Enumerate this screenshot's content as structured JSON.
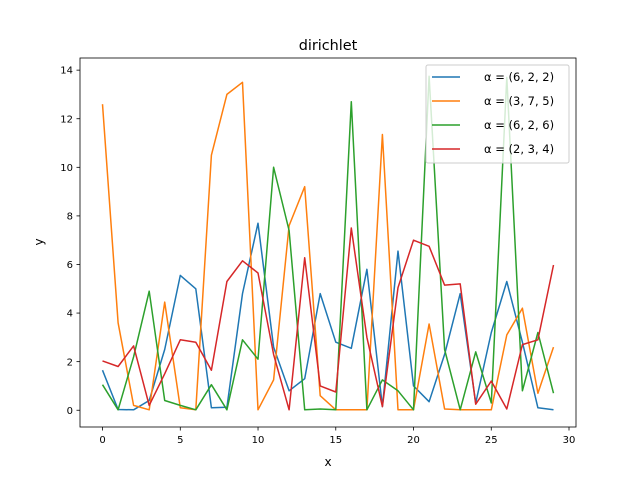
{
  "figure": {
    "title": "dirichlet",
    "xlabel": "x",
    "ylabel": "y"
  },
  "axes": {
    "xticks": [
      0,
      5,
      10,
      15,
      20,
      25,
      30
    ],
    "yticks": [
      0,
      2,
      4,
      6,
      8,
      10,
      12,
      14
    ],
    "xlim": [
      -1.45,
      30.45
    ],
    "ylim": [
      -0.69,
      14.5
    ]
  },
  "legend": {
    "position": "upper right",
    "entries": [
      {
        "label": "α = (6, 2, 2)",
        "color": "#1f77b4"
      },
      {
        "label": "α = (3, 7, 5)",
        "color": "#ff7f0e"
      },
      {
        "label": "α = (6, 2, 6)",
        "color": "#2ca02c"
      },
      {
        "label": "α = (2, 3, 4)",
        "color": "#d62728"
      }
    ]
  },
  "chart_data": {
    "type": "line",
    "title": "dirichlet",
    "xlabel": "x",
    "ylabel": "y",
    "xlim": [
      -1.45,
      30.45
    ],
    "ylim": [
      -0.69,
      14.5
    ],
    "grid": false,
    "legend_position": "upper right",
    "x": [
      0,
      1,
      2,
      3,
      4,
      5,
      6,
      7,
      8,
      9,
      10,
      11,
      12,
      13,
      14,
      15,
      16,
      17,
      18,
      19,
      20,
      21,
      22,
      23,
      24,
      25,
      26,
      27,
      28,
      29
    ],
    "series": [
      {
        "name": "α = (6, 2, 2)",
        "color": "#1f77b4",
        "values": [
          1.65,
          0.03,
          0.02,
          0.4,
          2.5,
          5.55,
          5.0,
          0.1,
          0.12,
          4.8,
          7.7,
          2.6,
          0.8,
          1.3,
          4.8,
          2.8,
          2.55,
          5.8,
          0.15,
          6.55,
          1.0,
          0.35,
          2.3,
          4.8,
          0.3,
          3.2,
          5.3,
          2.8,
          0.1,
          0.02
        ]
      },
      {
        "name": "α = (3, 7, 5)",
        "color": "#ff7f0e",
        "values": [
          12.6,
          3.6,
          0.2,
          0.02,
          4.45,
          0.1,
          0.02,
          10.5,
          13.0,
          13.5,
          0.02,
          1.25,
          7.6,
          9.2,
          0.6,
          0.02,
          0.02,
          0.02,
          11.35,
          0.02,
          0.02,
          3.55,
          0.05,
          0.02,
          0.02,
          0.02,
          3.1,
          4.2,
          0.7,
          2.6
        ]
      },
      {
        "name": "α = (6, 2, 6)",
        "color": "#2ca02c",
        "values": [
          1.05,
          0.02,
          2.2,
          4.9,
          0.4,
          0.2,
          0.02,
          1.05,
          0.02,
          2.9,
          2.1,
          10.0,
          7.4,
          0.02,
          0.05,
          0.02,
          12.7,
          0.02,
          1.25,
          0.8,
          0.02,
          13.75,
          2.5,
          0.02,
          2.4,
          0.3,
          13.7,
          0.8,
          3.2,
          0.7
        ]
      },
      {
        "name": "α = (2, 3, 4)",
        "color": "#d62728",
        "values": [
          2.03,
          1.8,
          2.65,
          0.2,
          1.5,
          2.9,
          2.8,
          1.65,
          5.3,
          6.15,
          5.65,
          2.3,
          0.02,
          6.28,
          1.0,
          0.75,
          7.5,
          3.0,
          0.15,
          5.05,
          7.0,
          6.75,
          5.15,
          5.2,
          0.25,
          1.2,
          0.05,
          2.7,
          2.9,
          5.98
        ]
      }
    ]
  }
}
